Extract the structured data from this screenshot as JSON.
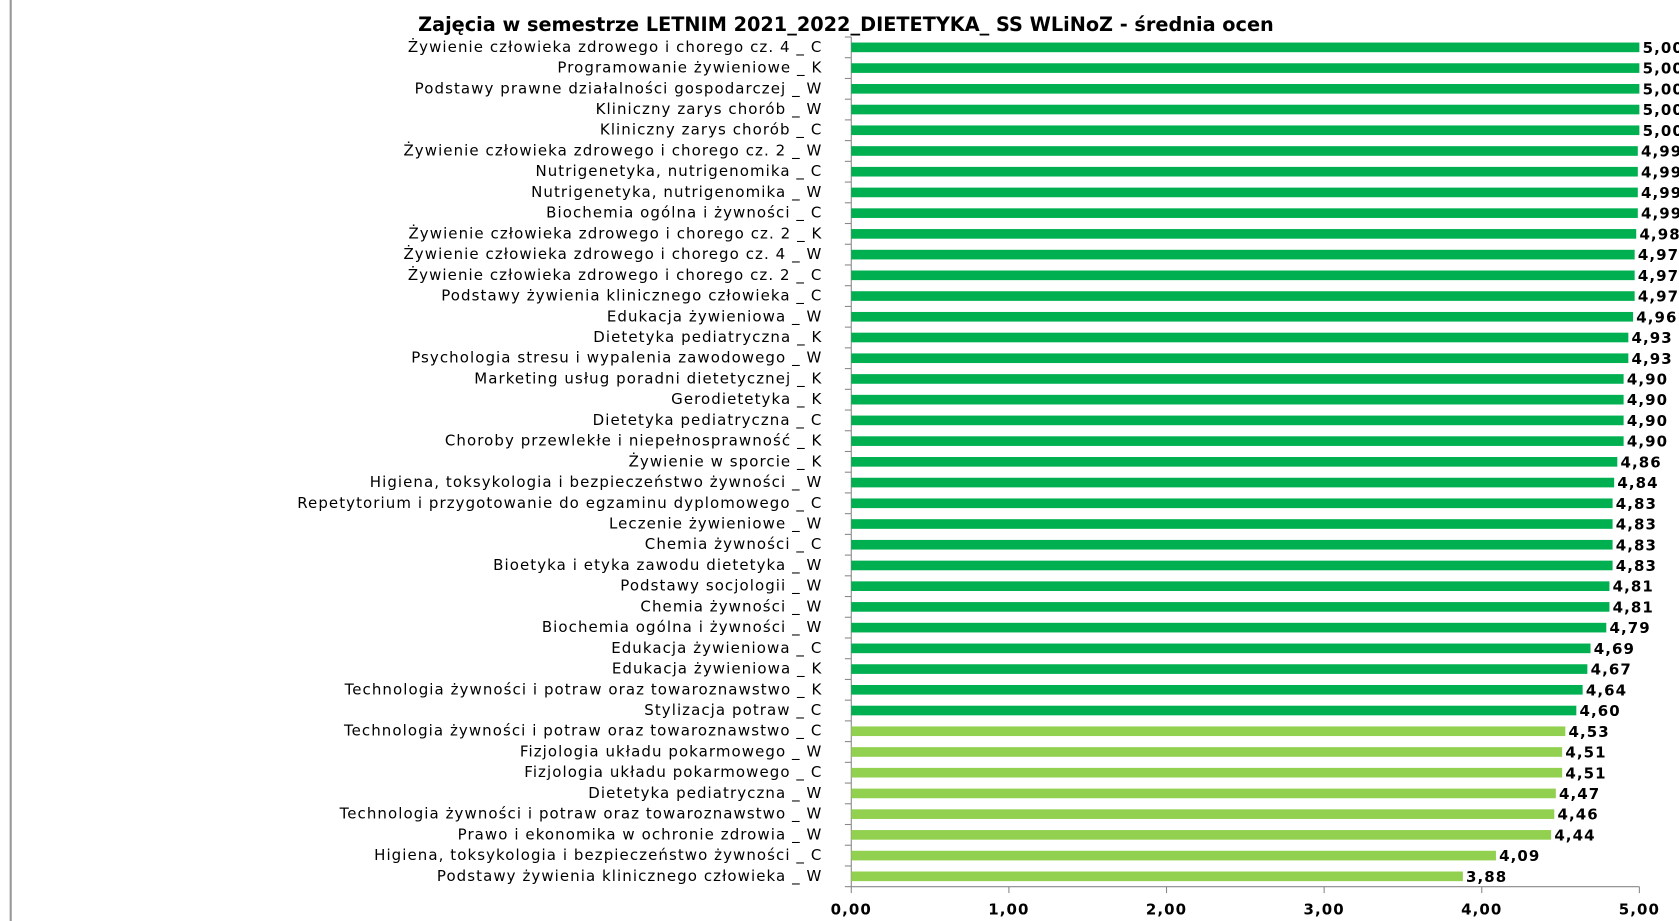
{
  "chart_data": {
    "type": "bar",
    "orientation": "horizontal",
    "title": "Zajęcia w semestrze LETNIM 2021_2022_DIETETYKA_  SS WLiNoZ - średnia ocen",
    "categories": [
      "Żywienie człowieka zdrowego i chorego cz. 4 _ C",
      "Programowanie żywieniowe _ K",
      "Podstawy prawne działalności gospodarczej _ W",
      "Kliniczny zarys chorób _ W",
      "Kliniczny zarys chorób _ C",
      "Żywienie człowieka zdrowego i chorego cz. 2 _ W",
      "Nutrigenetyka, nutrigenomika _ C",
      "Nutrigenetyka, nutrigenomika _ W",
      "Biochemia ogólna i żywności  _ C",
      "Żywienie człowieka zdrowego i chorego cz. 2 _ K",
      "Żywienie człowieka zdrowego i chorego cz. 4 _ W",
      "Żywienie człowieka zdrowego i chorego cz. 2 _ C",
      "Podstawy żywienia klinicznego człowieka _ C",
      "Edukacja żywieniowa  _ W",
      "Dietetyka pediatryczna _ K",
      "Psychologia stresu i wypalenia zawodowego _ W",
      "Marketing usług poradni dietetycznej _ K",
      "Gerodietetyka _ K",
      "Dietetyka pediatryczna _ C",
      "Choroby przewlekłe i niepełnosprawność _ K",
      "Żywienie w sporcie _ K",
      "Higiena, toksykologia i bezpieczeństwo żywności _ W",
      "Repetytorium i przygotowanie do egzaminu dyplomowego _ C",
      "Leczenie żywieniowe _ W",
      "Chemia żywności _ C",
      "Bioetyka i etyka zawodu dietetyka _ W",
      "Podstawy socjologii _ W",
      "Chemia żywności _ W",
      "Biochemia ogólna i żywności  _ W",
      "Edukacja żywieniowa  _ C",
      "Edukacja żywieniowa  _ K",
      "Technologia żywności i potraw oraz towaroznawstwo _ K",
      "Stylizacja potraw _ C",
      "Technologia żywności i potraw oraz towaroznawstwo _ C",
      "Fizjologia układu pokarmowego _ W",
      "Fizjologia układu pokarmowego _ C",
      "Dietetyka pediatryczna _ W",
      "Technologia żywności i potraw oraz towaroznawstwo _ W",
      "Prawo i ekonomika w ochronie zdrowia _ W",
      "Higiena, toksykologia i bezpieczeństwo żywności _ C",
      "Podstawy żywienia klinicznego człowieka _ W"
    ],
    "values": [
      5.0,
      5.0,
      5.0,
      5.0,
      5.0,
      4.99,
      4.99,
      4.99,
      4.99,
      4.98,
      4.97,
      4.97,
      4.97,
      4.96,
      4.93,
      4.93,
      4.9,
      4.9,
      4.9,
      4.9,
      4.86,
      4.84,
      4.83,
      4.83,
      4.83,
      4.83,
      4.81,
      4.81,
      4.79,
      4.69,
      4.67,
      4.64,
      4.6,
      4.53,
      4.51,
      4.51,
      4.47,
      4.46,
      4.44,
      4.09,
      3.88
    ],
    "value_labels": [
      "5,00",
      "5,00",
      "5,00",
      "5,00",
      "5,00",
      "4,99",
      "4,99",
      "4,99",
      "4,99",
      "4,98",
      "4,97",
      "4,97",
      "4,97",
      "4,96",
      "4,93",
      "4,93",
      "4,90",
      "4,90",
      "4,90",
      "4,90",
      "4,86",
      "4,84",
      "4,83",
      "4,83",
      "4,83",
      "4,83",
      "4,81",
      "4,81",
      "4,79",
      "4,69",
      "4,67",
      "4,64",
      "4,60",
      "4,53",
      "4,51",
      "4,51",
      "4,47",
      "4,46",
      "4,44",
      "4,09",
      "3,88"
    ],
    "colors": [
      "#00b050",
      "#00b050",
      "#00b050",
      "#00b050",
      "#00b050",
      "#00b050",
      "#00b050",
      "#00b050",
      "#00b050",
      "#00b050",
      "#00b050",
      "#00b050",
      "#00b050",
      "#00b050",
      "#00b050",
      "#00b050",
      "#00b050",
      "#00b050",
      "#00b050",
      "#00b050",
      "#00b050",
      "#00b050",
      "#00b050",
      "#00b050",
      "#00b050",
      "#00b050",
      "#00b050",
      "#00b050",
      "#00b050",
      "#00b050",
      "#00b050",
      "#00b050",
      "#00b050",
      "#92d050",
      "#92d050",
      "#92d050",
      "#92d050",
      "#92d050",
      "#92d050",
      "#92d050",
      "#92d050"
    ],
    "xlim": [
      0,
      5
    ],
    "xticks": [
      {
        "value": 0,
        "label": "0,00"
      },
      {
        "value": 1,
        "label": "1,00"
      },
      {
        "value": 2,
        "label": "2,00"
      },
      {
        "value": 3,
        "label": "3,00"
      },
      {
        "value": 4,
        "label": "4,00"
      },
      {
        "value": 5,
        "label": "5,00"
      }
    ],
    "grid": false
  }
}
